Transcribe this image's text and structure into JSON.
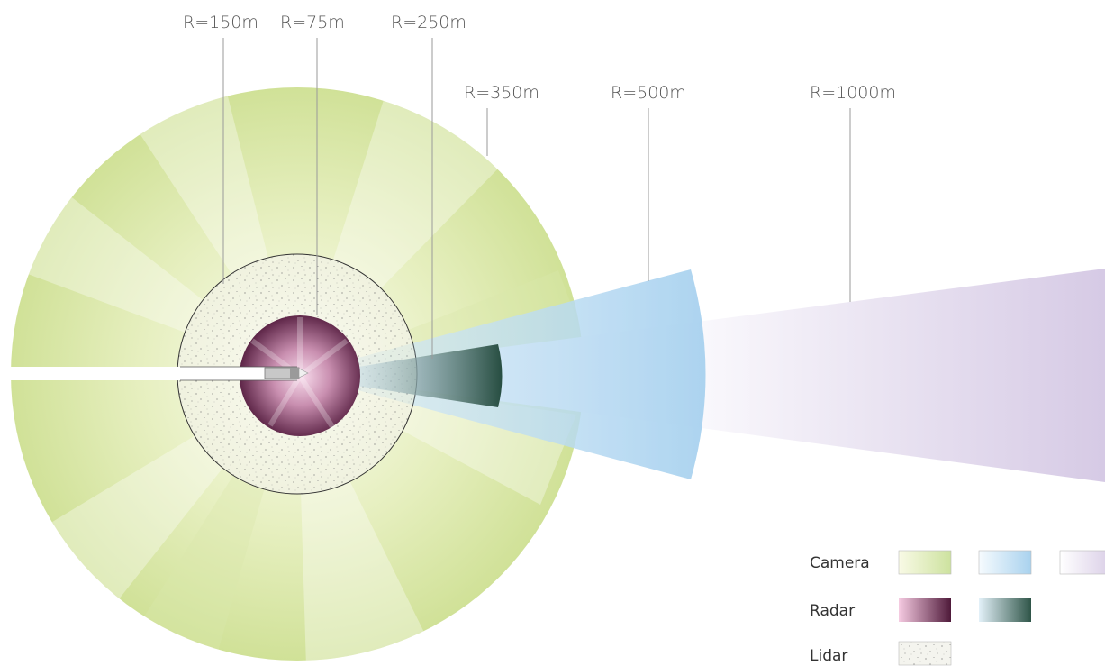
{
  "range_labels": [
    {
      "id": "r150",
      "text": "R=150m"
    },
    {
      "id": "r75",
      "text": "R=75m"
    },
    {
      "id": "r250",
      "text": "R=250m"
    },
    {
      "id": "r350",
      "text": "R=350m"
    },
    {
      "id": "r500",
      "text": "R=500m"
    },
    {
      "id": "r1000",
      "text": "R=1000m"
    }
  ],
  "legend": {
    "camera": "Camera",
    "radar": "Radar",
    "lidar": "Lidar"
  },
  "colors": {
    "camera_wide": [
      "#f7f9e2",
      "#d2e29a"
    ],
    "camera_mid": [
      "#f0f7fd",
      "#a9d2ee"
    ],
    "camera_long": [
      "#faf8fc",
      "#d9cde6"
    ],
    "radar_short": [
      "#f6cbe2",
      "#4f1a3a"
    ],
    "radar_long": [
      "#e3f1f9",
      "#2f5548"
    ],
    "lidar": "#f4f4ee"
  }
}
